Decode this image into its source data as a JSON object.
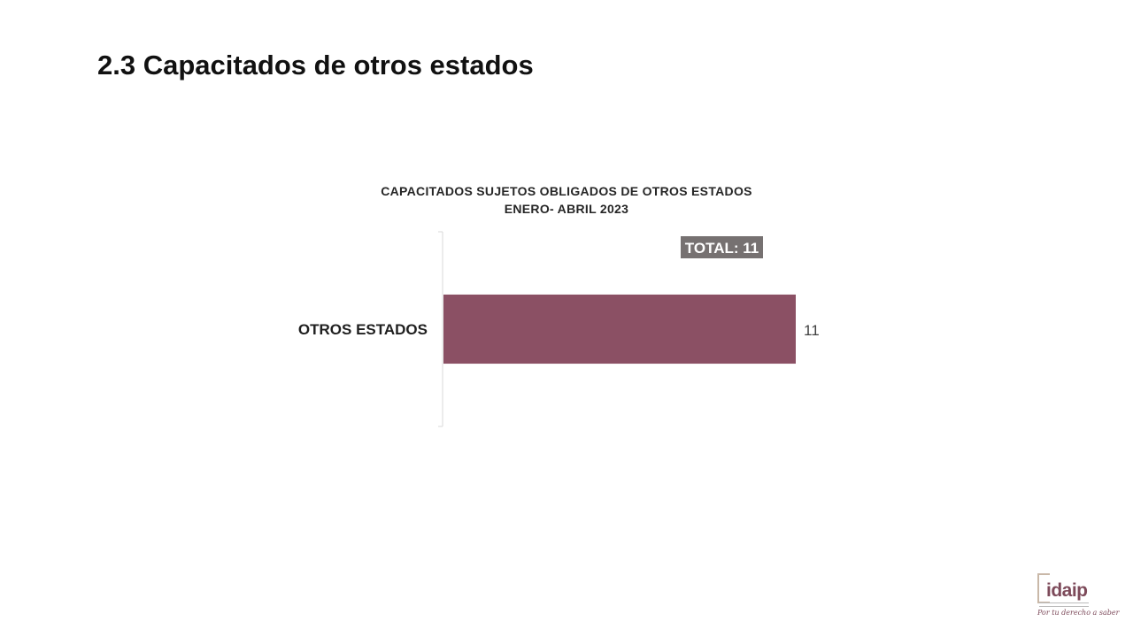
{
  "slide": {
    "title": "2.3 Capacitados de otros estados"
  },
  "chart_data": {
    "type": "bar",
    "orientation": "horizontal",
    "title_line1": "CAPACITADOS SUJETOS OBLIGADOS DE OTROS ESTADOS",
    "title_line2": "ENERO- ABRIL 2023",
    "categories": [
      "OTROS ESTADOS"
    ],
    "values": [
      11
    ],
    "data_labels": [
      "11"
    ],
    "annotation": "TOTAL: 11",
    "xlim": [
      0,
      11
    ],
    "grid": false,
    "legend": "none",
    "bar_color": "#8b5064",
    "annotation_bg": "#767171"
  },
  "logo": {
    "name": "idaip",
    "tagline": "Por tu derecho a saber"
  }
}
